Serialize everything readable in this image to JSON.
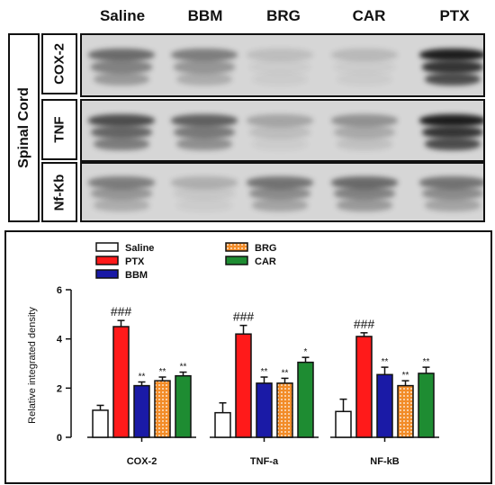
{
  "blot": {
    "tissue": "Spinal Cord",
    "lanes": [
      "Saline",
      "BBM",
      "BRG",
      "CAR",
      "PTX"
    ],
    "proteins": [
      "COX-2",
      "TNF",
      "Nf-Kb"
    ],
    "band_intensity": [
      [
        0.55,
        0.45,
        0.12,
        0.15,
        0.95
      ],
      [
        0.7,
        0.6,
        0.25,
        0.35,
        0.95
      ],
      [
        0.45,
        0.2,
        0.5,
        0.55,
        0.5
      ]
    ]
  },
  "chart_data": {
    "type": "bar",
    "categories": [
      "COX-2",
      "TNF-a",
      "NF-kB"
    ],
    "series": [
      {
        "name": "Saline",
        "values": [
          1.1,
          1.0,
          1.05
        ],
        "errors": [
          0.2,
          0.4,
          0.5
        ],
        "color": "#ffffff",
        "pattern": "none",
        "marks": [
          "",
          "",
          ""
        ]
      },
      {
        "name": "PTX",
        "values": [
          4.5,
          4.2,
          4.1
        ],
        "errors": [
          0.25,
          0.35,
          0.15
        ],
        "color": "#ff1a1a",
        "pattern": "none",
        "marks": [
          "###",
          "###",
          "###"
        ]
      },
      {
        "name": "BBM",
        "values": [
          2.1,
          2.2,
          2.55
        ],
        "errors": [
          0.15,
          0.25,
          0.3
        ],
        "color": "#1a1aa6",
        "pattern": "none",
        "marks": [
          "**",
          "**",
          "**"
        ]
      },
      {
        "name": "BRG",
        "values": [
          2.3,
          2.2,
          2.1
        ],
        "errors": [
          0.15,
          0.2,
          0.2
        ],
        "color": "#f28c28",
        "pattern": "dots",
        "marks": [
          "**",
          "**",
          "**"
        ]
      },
      {
        "name": "CAR",
        "values": [
          2.5,
          3.05,
          2.6
        ],
        "errors": [
          0.15,
          0.2,
          0.25
        ],
        "color": "#1e8c32",
        "pattern": "none",
        "marks": [
          "**",
          "*",
          "**"
        ]
      }
    ],
    "legend_order": [
      "Saline",
      "BRG",
      "PTX",
      "CAR",
      "BBM"
    ],
    "ylabel": "Relative integrated density",
    "xlabel": "",
    "ylim": [
      0,
      6
    ],
    "yticks": [
      0,
      2,
      4,
      6
    ],
    "legend_position": "top-left",
    "grid": false
  }
}
